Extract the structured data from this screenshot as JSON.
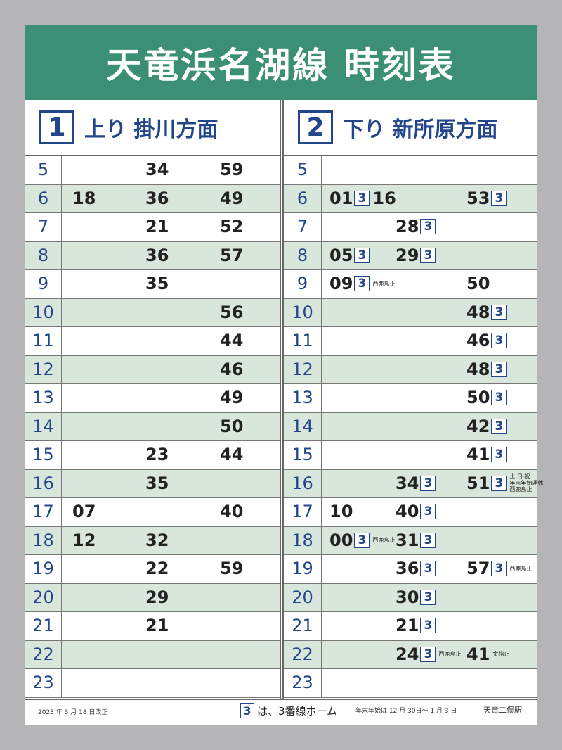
{
  "title": "天竜浜名湖線 時刻表",
  "left": {
    "number": "1",
    "label": "上り 掛川方面",
    "rows": [
      {
        "hour": "5",
        "slots": [
          [],
          [
            {
              "min": "34"
            }
          ],
          [
            {
              "min": "59"
            }
          ]
        ]
      },
      {
        "hour": "6",
        "slots": [
          [
            {
              "min": "18"
            }
          ],
          [
            {
              "min": "36"
            }
          ],
          [
            {
              "min": "49"
            }
          ]
        ]
      },
      {
        "hour": "7",
        "slots": [
          [],
          [
            {
              "min": "21"
            }
          ],
          [
            {
              "min": "52"
            }
          ]
        ]
      },
      {
        "hour": "8",
        "slots": [
          [],
          [
            {
              "min": "36"
            }
          ],
          [
            {
              "min": "57"
            }
          ]
        ]
      },
      {
        "hour": "9",
        "slots": [
          [],
          [
            {
              "min": "35"
            }
          ],
          []
        ]
      },
      {
        "hour": "10",
        "slots": [
          [],
          [],
          [
            {
              "min": "56"
            }
          ]
        ]
      },
      {
        "hour": "11",
        "slots": [
          [],
          [],
          [
            {
              "min": "44"
            }
          ]
        ]
      },
      {
        "hour": "12",
        "slots": [
          [],
          [],
          [
            {
              "min": "46"
            }
          ]
        ]
      },
      {
        "hour": "13",
        "slots": [
          [],
          [],
          [
            {
              "min": "49"
            }
          ]
        ]
      },
      {
        "hour": "14",
        "slots": [
          [],
          [],
          [
            {
              "min": "50"
            }
          ]
        ]
      },
      {
        "hour": "15",
        "slots": [
          [],
          [
            {
              "min": "23"
            }
          ],
          [
            {
              "min": "44"
            }
          ]
        ]
      },
      {
        "hour": "16",
        "slots": [
          [],
          [
            {
              "min": "35"
            }
          ],
          []
        ]
      },
      {
        "hour": "17",
        "slots": [
          [
            {
              "min": "07"
            }
          ],
          [],
          [
            {
              "min": "40"
            }
          ]
        ]
      },
      {
        "hour": "18",
        "slots": [
          [
            {
              "min": "12"
            }
          ],
          [
            {
              "min": "32"
            }
          ],
          []
        ]
      },
      {
        "hour": "19",
        "slots": [
          [],
          [
            {
              "min": "22"
            }
          ],
          [
            {
              "min": "59"
            }
          ]
        ]
      },
      {
        "hour": "20",
        "slots": [
          [],
          [
            {
              "min": "29"
            }
          ],
          []
        ]
      },
      {
        "hour": "21",
        "slots": [
          [],
          [
            {
              "min": "21"
            }
          ],
          []
        ]
      },
      {
        "hour": "22",
        "slots": [
          [],
          [],
          []
        ]
      },
      {
        "hour": "23",
        "slots": [
          [],
          [],
          []
        ]
      }
    ]
  },
  "right": {
    "number": "2",
    "label": "下り 新所原方面",
    "rows": [
      {
        "hour": "5",
        "slots": [
          [],
          [],
          []
        ]
      },
      {
        "hour": "6",
        "slots": [
          [
            {
              "min": "01",
              "p3": "3"
            },
            {
              "min": "16"
            }
          ],
          [],
          [
            {
              "min": "53",
              "p3": "3"
            }
          ]
        ]
      },
      {
        "hour": "7",
        "slots": [
          [],
          [
            {
              "min": "28",
              "p3": "3"
            }
          ],
          []
        ]
      },
      {
        "hour": "8",
        "slots": [
          [
            {
              "min": "05",
              "p3": "3"
            }
          ],
          [
            {
              "min": "29",
              "p3": "3"
            }
          ],
          []
        ]
      },
      {
        "hour": "9",
        "slots": [
          [
            {
              "min": "09",
              "p3": "3",
              "note": "西鹿島止"
            }
          ],
          [],
          [
            {
              "min": "50"
            }
          ]
        ]
      },
      {
        "hour": "10",
        "slots": [
          [],
          [],
          [
            {
              "min": "48",
              "p3": "3"
            }
          ]
        ]
      },
      {
        "hour": "11",
        "slots": [
          [],
          [],
          [
            {
              "min": "46",
              "p3": "3"
            }
          ]
        ]
      },
      {
        "hour": "12",
        "slots": [
          [],
          [],
          [
            {
              "min": "48",
              "p3": "3"
            }
          ]
        ]
      },
      {
        "hour": "13",
        "slots": [
          [],
          [],
          [
            {
              "min": "50",
              "p3": "3"
            }
          ]
        ]
      },
      {
        "hour": "14",
        "slots": [
          [],
          [],
          [
            {
              "min": "42",
              "p3": "3"
            }
          ]
        ]
      },
      {
        "hour": "15",
        "slots": [
          [],
          [],
          [
            {
              "min": "41",
              "p3": "3"
            }
          ]
        ]
      },
      {
        "hour": "16",
        "slots": [
          [],
          [
            {
              "min": "34",
              "p3": "3"
            }
          ],
          [
            {
              "min": "51",
              "p3": "3",
              "note": "土·日·祝\n年末年始運休\n西鹿島止"
            }
          ]
        ]
      },
      {
        "hour": "17",
        "slots": [
          [
            {
              "min": "10"
            }
          ],
          [
            {
              "min": "40",
              "p3": "3"
            }
          ],
          []
        ]
      },
      {
        "hour": "18",
        "slots": [
          [
            {
              "min": "00",
              "p3": "3",
              "note": "西鹿島止"
            }
          ],
          [
            {
              "min": "31",
              "p3": "3"
            }
          ],
          []
        ]
      },
      {
        "hour": "19",
        "slots": [
          [],
          [
            {
              "min": "36",
              "p3": "3"
            }
          ],
          [
            {
              "min": "57",
              "p3": "3",
              "note": "西鹿島止"
            }
          ]
        ]
      },
      {
        "hour": "20",
        "slots": [
          [],
          [
            {
              "min": "30",
              "p3": "3"
            }
          ],
          []
        ]
      },
      {
        "hour": "21",
        "slots": [
          [],
          [
            {
              "min": "21",
              "p3": "3"
            }
          ],
          []
        ]
      },
      {
        "hour": "22",
        "slots": [
          [],
          [
            {
              "min": "24",
              "p3": "3",
              "note": "西鹿島止"
            }
          ],
          [
            {
              "min": "41",
              "note": "金指止"
            }
          ]
        ]
      },
      {
        "hour": "23",
        "slots": [
          [],
          [],
          []
        ]
      }
    ]
  },
  "footer": {
    "revised": "2023 年 3 月 18 日改正",
    "legend_box": "3",
    "legend_text": "は、3番線ホーム",
    "holiday": "年末年始は 12 月 30日～ 1 月 3 日",
    "station": "天竜二俣駅"
  },
  "colors": {
    "header": "#3b8f74",
    "accent": "#23468a",
    "row_alt": "#d9e6dc"
  }
}
